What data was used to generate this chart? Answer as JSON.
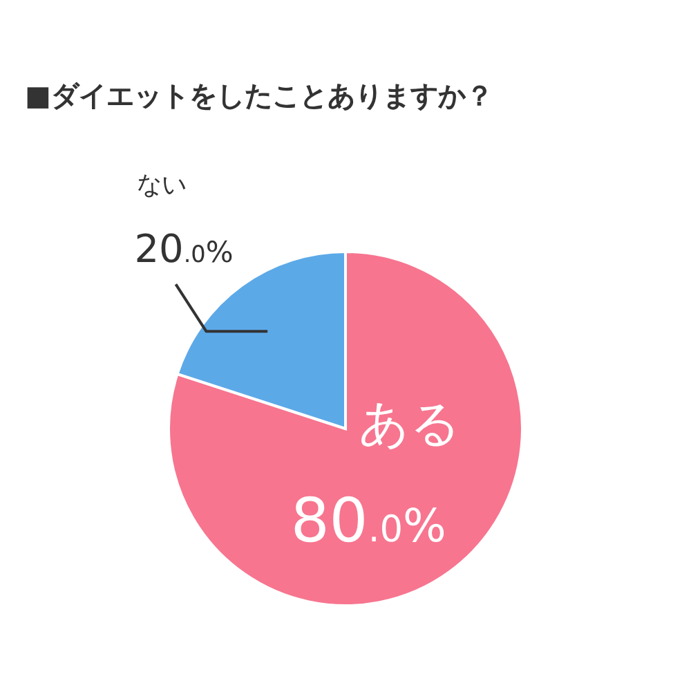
{
  "chart_data": {
    "type": "pie",
    "title": "■ダイエットをしたことありますか？",
    "categories": [
      "ある",
      "ない"
    ],
    "values": [
      80.0,
      20.0
    ],
    "colors": [
      "#f7758f",
      "#5ca9e8"
    ],
    "value_labels": [
      "80.0%",
      "20.0%"
    ]
  }
}
